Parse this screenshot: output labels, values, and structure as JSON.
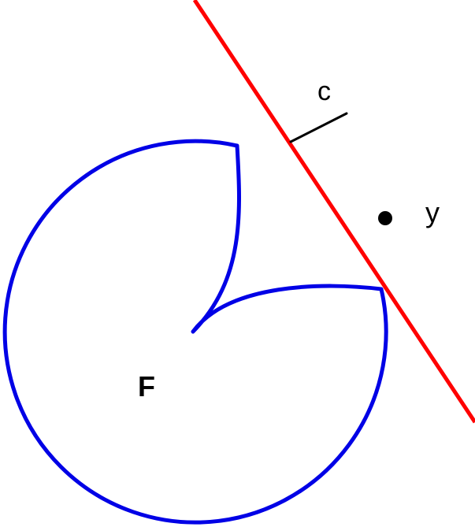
{
  "diagram": {
    "shape": {
      "label": "F",
      "color": "#0000e6"
    },
    "line": {
      "color": "#ff0000"
    },
    "normal": {
      "label": "c",
      "color": "#000000"
    },
    "point": {
      "label": "y",
      "color": "#000000"
    }
  }
}
